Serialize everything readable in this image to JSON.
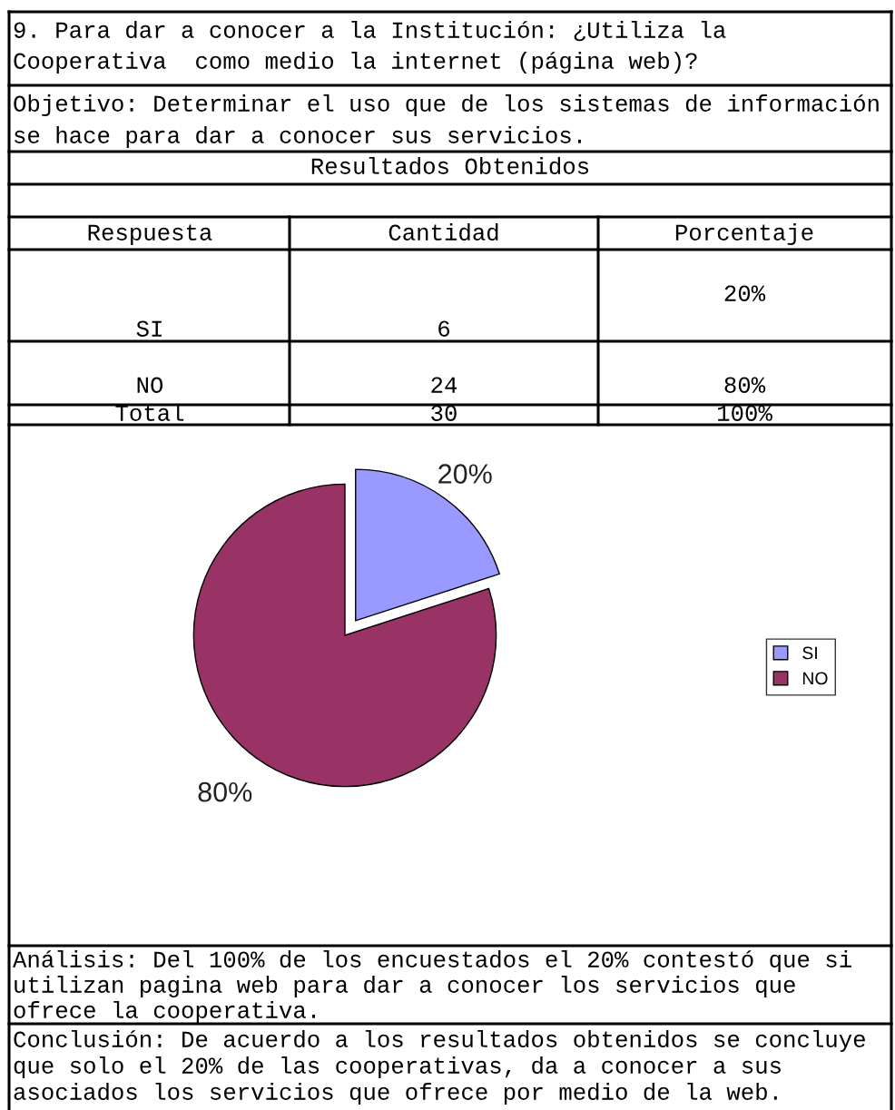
{
  "chart_data": {
    "type": "pie",
    "title": "9. Para dar a conocer a la Institución: ¿Utiliza la Cooperativa  como medio la internet (página web)?",
    "subtitle": "Objetivo: Determinar el uso que de los sistemas de información se hace para dar a conocer sus servicios.",
    "categories": [
      "SI",
      "NO"
    ],
    "values": [
      20,
      80
    ],
    "colors": [
      "#9999ff",
      "#993366"
    ],
    "value_labels": [
      "20%",
      "80%"
    ],
    "legend": "right",
    "annotations": [
      "Resultados Obtenidos",
      "Respuesta",
      "Cantidad",
      "Porcentaje",
      "SI",
      "6",
      "20%",
      "NO",
      "24",
      "80%",
      "Total",
      "30",
      "100%",
      "Análisis: Del 100% de los encuestados el 20% contestó que si utilizan pagina web para dar a conocer los servicios que ofrece la cooperativa.",
      "Conclusión: De acuerdo a los resultados obtenidos se concluye que solo el 20% de las cooperativas, da a conocer a sus asociados los servicios que ofrece por medio de la web."
    ]
  }
}
